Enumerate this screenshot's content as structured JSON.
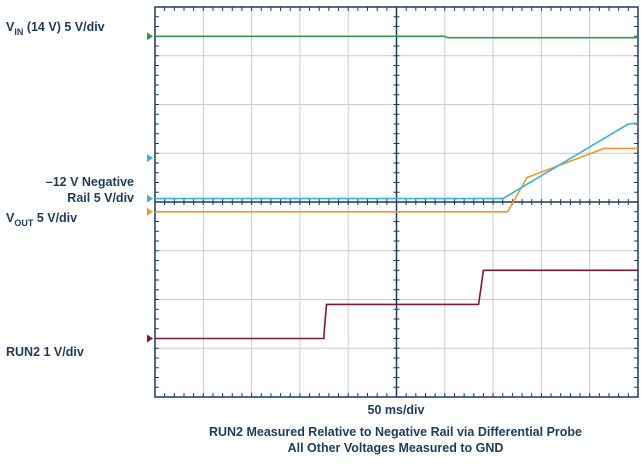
{
  "labels": {
    "vin_main": "V",
    "vin_sub": "IN",
    "vin_rest": " (14 V)  5 V/div",
    "neg_line1": "–12 V Negative",
    "neg_line2": "Rail 5 V/div",
    "vout_main": "V",
    "vout_sub": "OUT",
    "vout_rest": " 5 V/div",
    "run2": "RUN2 1 V/div",
    "timebase": "50 ms/div"
  },
  "captions": {
    "line1": "RUN2 Measured Relative to Negative Rail via Differential Probe",
    "line2": "All Other Voltages Measured to GND"
  },
  "colors": {
    "vin": "#2e9e4a",
    "neg_rail": "#3cb0dc",
    "vout": "#f0962a",
    "run2": "#7a1a2e",
    "grid": "#c8ccd4",
    "frame": "#1f3a5a",
    "text": "#1f3a5a"
  },
  "chart_data": {
    "type": "line",
    "x_unit": "div",
    "y_unit": "div",
    "xlim": [
      0,
      10
    ],
    "ylim": [
      0,
      8
    ],
    "series": [
      {
        "key": "vin",
        "points": [
          [
            0,
            7.4
          ],
          [
            6.0,
            7.4
          ],
          [
            6.05,
            7.37
          ],
          [
            10,
            7.37
          ]
        ]
      },
      {
        "key": "vout",
        "points": [
          [
            0,
            3.8
          ],
          [
            7.3,
            3.8
          ],
          [
            7.7,
            4.5
          ],
          [
            9.3,
            5.1
          ],
          [
            10,
            5.1
          ]
        ]
      },
      {
        "key": "neg_rail",
        "points": [
          [
            0,
            4.07
          ],
          [
            7.2,
            4.07
          ],
          [
            9.8,
            5.6
          ],
          [
            10,
            5.62
          ]
        ]
      },
      {
        "key": "run2",
        "points": [
          [
            0,
            1.2
          ],
          [
            3.5,
            1.2
          ],
          [
            3.5,
            1.3
          ],
          [
            3.55,
            1.9
          ],
          [
            6.7,
            1.9
          ],
          [
            6.8,
            2.6
          ],
          [
            10,
            2.6
          ]
        ]
      }
    ]
  },
  "markers": [
    {
      "key": "vin",
      "y": 7.4
    },
    {
      "key": "neg_rail",
      "y": 4.9
    },
    {
      "key": "neg_rail",
      "y": 4.07
    },
    {
      "key": "vout",
      "y": 3.8
    },
    {
      "key": "run2",
      "y": 1.2
    }
  ]
}
